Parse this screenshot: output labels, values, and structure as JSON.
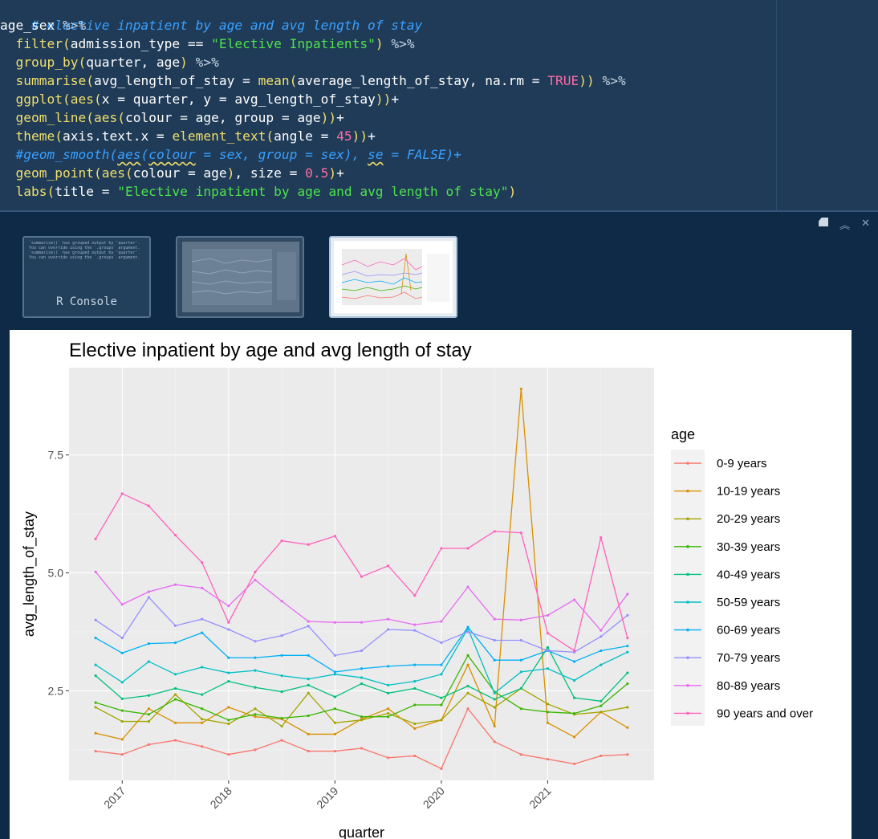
{
  "code": {
    "comment": "# elective inpatient by age and avg length of stay",
    "l1_obj": "age_sex",
    "pipe": "%>%",
    "l2_fn": "filter",
    "l2_args": "admission_type == ",
    "l2_str": "\"Elective Inpatients\"",
    "l3_fn": "group_by",
    "l3_args": "quarter, age",
    "l4_fn": "summarise",
    "l4_a": "avg_length_of_stay = ",
    "l4_fn2": "mean",
    "l4_b": "average_length_of_stay, na.rm = ",
    "l4_true": "TRUE",
    "l5_fn": "ggplot",
    "l5_fn2": "aes",
    "l5_args": "x = quarter, y = avg_length_of_stay",
    "l6_fn": "geom_line",
    "l6_fn2": "aes",
    "l6_args": "colour = age, group = age",
    "l7_fn": "theme",
    "l7_a": "axis.text.x = ",
    "l7_fn2": "element_text",
    "l7_b": "angle = ",
    "l7_num": "45",
    "l8_c1": "#geom_smooth(",
    "l8_c2": "aes",
    "l8_c3": "(",
    "l8_c4": "colour",
    "l8_c5": " = sex, group = sex), ",
    "l8_c6": "se",
    "l8_c7": " = FALSE)+",
    "l9_fn": "geom_point",
    "l9_fn2": "aes",
    "l9_a": "colour = age",
    "l9_b": ", size = ",
    "l9_num": "0.5",
    "l10_fn": "labs",
    "l10_a": "title = ",
    "l10_str": "\"Elective inpatient by age and avg length of stay\""
  },
  "viewer": {
    "console_thumb_label": "R Console",
    "console_thumb_text": "`summarise()` has grouped output by 'quarter'. You can override using the `.groups` argument. `summarise()` has grouped output by 'quarter'. You can override using the `.groups` argument."
  },
  "colors": {
    "editor_bg": "#1f3b58",
    "pane_bg": "#0e2a47",
    "panel_bg": "#ebebeb"
  },
  "chart_data": {
    "type": "line",
    "title": "Elective inpatient by age and avg length of stay",
    "xlabel": "quarter",
    "ylabel": "avg_length_of_stay",
    "legend_title": "age",
    "legend_position": "right",
    "grid": true,
    "x_ticks": [
      "2017",
      "2018",
      "2019",
      "2020",
      "2021"
    ],
    "x_tick_values": [
      2017,
      2018,
      2019,
      2020,
      2021
    ],
    "y_ticks": [
      "2.5",
      "5.0",
      "7.5"
    ],
    "y_tick_values": [
      2.5,
      5.0,
      7.5
    ],
    "xlim": [
      2016.5,
      2022.0
    ],
    "ylim": [
      0.6,
      9.35
    ],
    "x": [
      2016.75,
      2017.0,
      2017.25,
      2017.5,
      2017.75,
      2018.0,
      2018.25,
      2018.5,
      2018.75,
      2019.0,
      2019.25,
      2019.5,
      2019.75,
      2020.0,
      2020.25,
      2020.5,
      2020.75,
      2021.0,
      2021.25,
      2021.5,
      2021.75
    ],
    "series": [
      {
        "name": "0-9 years",
        "color": "#F8766D",
        "values": [
          1.22,
          1.15,
          1.36,
          1.45,
          1.32,
          1.15,
          1.25,
          1.45,
          1.22,
          1.22,
          1.28,
          1.08,
          1.12,
          0.85,
          2.12,
          1.42,
          1.15,
          1.05,
          0.95,
          1.12,
          1.15
        ]
      },
      {
        "name": "10-19 years",
        "color": "#D89000",
        "values": [
          1.6,
          1.47,
          2.12,
          1.82,
          1.82,
          2.15,
          1.95,
          1.9,
          1.58,
          1.58,
          1.9,
          2.12,
          1.7,
          1.88,
          3.05,
          1.75,
          8.9,
          1.82,
          1.52,
          2.05,
          1.72
        ]
      },
      {
        "name": "20-29 years",
        "color": "#A3A500",
        "values": [
          2.15,
          1.85,
          1.85,
          2.42,
          1.9,
          1.8,
          2.12,
          1.75,
          2.45,
          1.82,
          1.88,
          2.02,
          1.8,
          1.88,
          2.45,
          2.15,
          2.55,
          2.22,
          2.0,
          2.05,
          2.15
        ]
      },
      {
        "name": "30-39 years",
        "color": "#39B600",
        "values": [
          2.25,
          2.08,
          2.0,
          2.32,
          2.12,
          1.88,
          2.0,
          1.92,
          1.97,
          2.12,
          1.95,
          1.95,
          2.2,
          2.2,
          3.25,
          2.48,
          2.12,
          2.05,
          2.02,
          2.18,
          2.65
        ]
      },
      {
        "name": "40-49 years",
        "color": "#00BF7D",
        "values": [
          2.82,
          2.33,
          2.4,
          2.55,
          2.42,
          2.7,
          2.57,
          2.48,
          2.62,
          2.37,
          2.65,
          2.45,
          2.55,
          2.35,
          2.6,
          2.32,
          2.55,
          3.42,
          2.35,
          2.28,
          2.88
        ]
      },
      {
        "name": "50-59 years",
        "color": "#00BFC4",
        "values": [
          3.05,
          2.68,
          3.12,
          2.85,
          3.0,
          2.88,
          2.93,
          2.82,
          2.75,
          2.85,
          2.78,
          2.62,
          2.7,
          2.85,
          3.82,
          2.45,
          2.9,
          2.97,
          2.72,
          3.05,
          3.32
        ]
      },
      {
        "name": "60-69 years",
        "color": "#00B0F6",
        "values": [
          3.62,
          3.3,
          3.5,
          3.52,
          3.73,
          3.2,
          3.2,
          3.25,
          3.25,
          2.9,
          2.97,
          3.02,
          3.05,
          3.05,
          3.85,
          3.15,
          3.15,
          3.35,
          3.12,
          3.35,
          3.45
        ]
      },
      {
        "name": "70-79 years",
        "color": "#9590FF",
        "values": [
          4.0,
          3.62,
          4.48,
          3.88,
          4.02,
          3.8,
          3.55,
          3.67,
          3.87,
          3.25,
          3.35,
          3.8,
          3.78,
          3.52,
          3.75,
          3.57,
          3.57,
          3.35,
          3.32,
          3.65,
          4.1
        ]
      },
      {
        "name": "80-89 years",
        "color": "#E76BF3",
        "values": [
          5.02,
          4.33,
          4.6,
          4.75,
          4.68,
          4.3,
          4.85,
          4.4,
          3.97,
          3.95,
          3.95,
          4.02,
          3.9,
          3.97,
          4.7,
          4.02,
          4.0,
          4.1,
          4.43,
          3.78,
          4.55
        ]
      },
      {
        "name": "90 years and over",
        "color": "#FF62BC",
        "values": [
          5.72,
          6.68,
          6.42,
          5.8,
          5.22,
          3.95,
          5.02,
          5.68,
          5.6,
          5.78,
          4.92,
          5.15,
          4.52,
          5.52,
          5.52,
          5.88,
          5.85,
          3.72,
          3.35,
          5.75,
          3.62
        ]
      }
    ]
  }
}
